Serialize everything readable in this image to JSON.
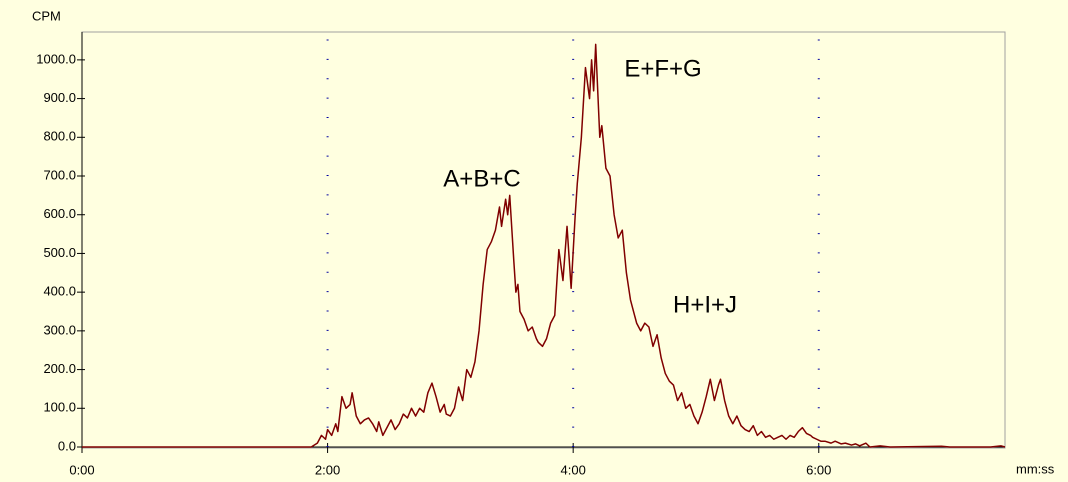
{
  "chart_data": {
    "type": "line",
    "ylabel": "CPM",
    "xlabel": "mm:ss",
    "annotations": [
      "A+B+C",
      "E+F+G",
      "H+I+J"
    ],
    "series": [
      {
        "color": "#800000",
        "x": [
          0,
          112,
          115,
          117,
          119,
          120,
          122,
          124,
          125,
          127,
          129,
          131,
          132,
          134,
          136,
          138,
          140,
          142,
          144,
          145,
          147,
          149,
          151,
          153,
          155,
          157,
          159,
          161,
          163,
          165,
          167,
          169,
          171,
          173,
          175,
          177,
          178,
          180,
          182,
          184,
          186,
          188,
          190,
          192,
          194,
          196,
          198,
          200,
          202,
          204,
          205,
          207,
          208,
          209,
          211,
          212,
          213,
          214,
          216,
          218,
          220,
          222,
          223,
          225,
          227,
          229,
          231,
          233,
          235,
          237,
          239,
          241,
          242,
          244,
          246,
          248,
          249,
          250,
          251,
          253,
          254,
          256,
          258,
          260,
          262,
          264,
          266,
          268,
          269,
          271,
          273,
          275,
          277,
          279,
          281,
          283,
          285,
          287,
          289,
          291,
          293,
          295,
          297,
          299,
          301,
          303,
          305,
          307,
          309,
          311,
          312,
          314,
          316,
          318,
          320,
          322,
          324,
          326,
          328,
          330,
          332,
          334,
          336,
          338,
          340,
          342,
          344,
          346,
          348,
          350,
          352,
          354,
          356,
          357,
          359,
          361,
          363,
          366,
          368,
          371,
          373,
          376,
          378,
          380,
          383,
          385,
          390,
          395,
          420,
          424,
          444,
          449,
          451
        ],
        "values": [
          0,
          0,
          10,
          30,
          20,
          45,
          30,
          60,
          40,
          130,
          100,
          110,
          140,
          80,
          60,
          70,
          75,
          60,
          40,
          65,
          30,
          50,
          70,
          45,
          60,
          85,
          75,
          100,
          80,
          100,
          90,
          140,
          165,
          130,
          90,
          110,
          85,
          80,
          100,
          155,
          120,
          200,
          180,
          220,
          300,
          420,
          510,
          530,
          560,
          620,
          570,
          640,
          600,
          650,
          480,
          400,
          420,
          350,
          330,
          300,
          310,
          280,
          270,
          260,
          280,
          320,
          340,
          510,
          430,
          570,
          410,
          600,
          680,
          800,
          980,
          900,
          1000,
          920,
          1040,
          800,
          830,
          720,
          700,
          600,
          540,
          560,
          450,
          380,
          360,
          320,
          300,
          320,
          310,
          260,
          290,
          230,
          190,
          170,
          160,
          120,
          140,
          100,
          110,
          80,
          60,
          90,
          130,
          175,
          120,
          160,
          175,
          120,
          80,
          60,
          80,
          55,
          45,
          40,
          55,
          30,
          40,
          25,
          30,
          20,
          25,
          30,
          20,
          30,
          25,
          40,
          50,
          35,
          30,
          25,
          20,
          15,
          15,
          10,
          15,
          8,
          10,
          5,
          8,
          3,
          10,
          0,
          3,
          0,
          2,
          0,
          0,
          3,
          0
        ]
      }
    ],
    "xlim": [
      0,
      451
    ],
    "ylim": [
      0,
      1072
    ],
    "xticks": [
      {
        "value": 0,
        "label": "0:00"
      },
      {
        "value": 120,
        "label": "2:00"
      },
      {
        "value": 240,
        "label": "4:00"
      },
      {
        "value": 360,
        "label": "6:00"
      }
    ],
    "yticks": [
      {
        "value": 0,
        "label": "0.0"
      },
      {
        "value": 100,
        "label": "100.0"
      },
      {
        "value": 200,
        "label": "200.0"
      },
      {
        "value": 300,
        "label": "300.0"
      },
      {
        "value": 400,
        "label": "400.0"
      },
      {
        "value": 500,
        "label": "500.0"
      },
      {
        "value": 600,
        "label": "600.0"
      },
      {
        "value": 700,
        "label": "700.0"
      },
      {
        "value": 800,
        "label": "800.0"
      },
      {
        "value": 900,
        "label": "900.0"
      },
      {
        "value": 1000,
        "label": "1000.0"
      }
    ],
    "grid": "x"
  }
}
